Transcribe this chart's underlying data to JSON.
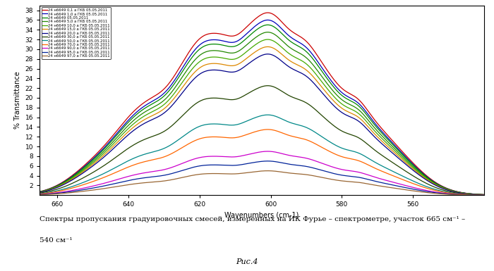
{
  "xlabel": "Wavenumbers (cm-1)",
  "ylabel": "% Transmittance",
  "xmin": 540,
  "xmax": 665,
  "ymin": 0,
  "ymax": 39,
  "yticks": [
    2,
    4,
    6,
    8,
    10,
    12,
    14,
    16,
    18,
    20,
    22,
    24,
    26,
    28,
    30,
    32,
    34,
    36,
    38
  ],
  "xticks": [
    560,
    580,
    600,
    620,
    640,
    660
  ],
  "caption_line1": "Спектры пропускания градуировочных смесей, измеренных на ИК Фурье – спектрометре, участок 665 см⁻¹ –",
  "caption_line2": "540 см⁻¹",
  "fig_label": "Рис.4",
  "background_color": "#ffffff",
  "legend_entries": [
    "24 н6649 0,1 а ГКБ 05.05.2011",
    "24 н6649 1,0 а ГКБ 05.05.2011",
    "24 н6649 05.05.2011",
    "24 н6649 5,0 а ГКБ 05.05.2011",
    "24 н6649 10,0 а ГКБ 05.05.2011",
    "24 н6649 15,0 а ГКБ 05.05.2011",
    "24 н6649 20,0 а ГКБ 05.05.2011",
    "24 н6649 30,0 а ГКБ 05.05.2011",
    "24 н6649 50,0 а ГКБ 05.05.2011",
    "24 н6649 70,0 а ГКБ 05.05.2011",
    "24 н6649 90,0 а ГКБ 05.05.2011",
    "24 н6649 95,0 а ГКБ 05.05.2011",
    "24 н6649 97,0 а ГКБ 05.05.2011"
  ],
  "colors": [
    "#cc0000",
    "#0000bb",
    "#008800",
    "#228800",
    "#44aa00",
    "#dd8800",
    "#000088",
    "#224400",
    "#008888",
    "#ff6600",
    "#cc00cc",
    "#002299",
    "#996633"
  ],
  "peak_values": [
    37.5,
    36.0,
    35.0,
    33.5,
    32.0,
    30.5,
    29.0,
    22.5,
    16.5,
    13.5,
    9.0,
    7.0,
    5.0
  ]
}
